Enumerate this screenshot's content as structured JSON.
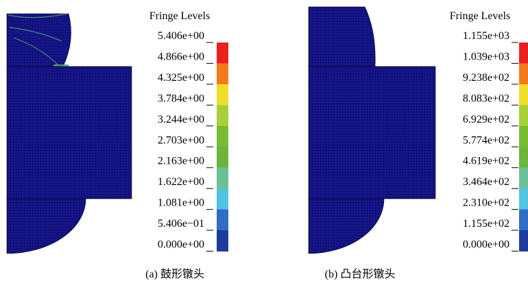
{
  "panels": [
    {
      "legend": {
        "title": "Fringe Levels",
        "levels": [
          "5.406e+00",
          "4.866e+00",
          "4.325e+00",
          "3.784e+00",
          "3.244e+00",
          "2.703e+00",
          "2.163e+00",
          "1.622e+00",
          "1.081e+00",
          "5.406e−01",
          "0.000e+00"
        ]
      },
      "caption": "(a)  鼓形镦头"
    },
    {
      "legend": {
        "title": "Fringe Levels",
        "levels": [
          "1.155e+03",
          "1.039e+03",
          "9.238e+02",
          "8.083e+02",
          "6.929e+02",
          "5.774e+02",
          "4.619e+02",
          "3.464e+02",
          "2.310e+02",
          "1.155e+02",
          "0.000e+00"
        ]
      },
      "caption": "(b)  凸台形镦头"
    }
  ]
}
